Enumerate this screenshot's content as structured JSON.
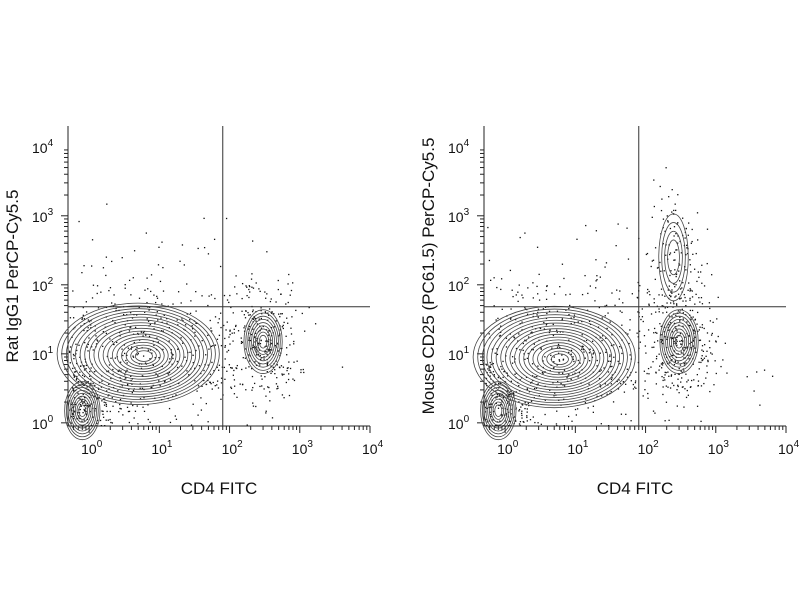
{
  "chart_data": [
    {
      "type": "scatter",
      "subtype": "flow-cytometry-contour",
      "xlabel": "CD4 FITC",
      "ylabel": "Rat IgG1 PerCP-Cy5.5",
      "x_scale": "log",
      "y_scale": "log",
      "xlim": [
        0.5,
        10000
      ],
      "ylim": [
        0.9,
        20000
      ],
      "x_ticks": [
        {
          "base": "10",
          "exp": "0",
          "value": 1
        },
        {
          "base": "10",
          "exp": "1",
          "value": 10
        },
        {
          "base": "10",
          "exp": "2",
          "value": 100
        },
        {
          "base": "10",
          "exp": "3",
          "value": 1000
        },
        {
          "base": "10",
          "exp": "4",
          "value": 10000
        }
      ],
      "y_ticks": [
        {
          "base": "10",
          "exp": "0",
          "value": 1
        },
        {
          "base": "10",
          "exp": "1",
          "value": 10
        },
        {
          "base": "10",
          "exp": "2",
          "value": 100
        },
        {
          "base": "10",
          "exp": "3",
          "value": 1000
        },
        {
          "base": "10",
          "exp": "4",
          "value": 10000
        }
      ],
      "gate": {
        "x": 80,
        "y": 48
      },
      "populations": [
        {
          "center": [
            5,
            10
          ],
          "spread": [
            0.55,
            0.35
          ],
          "density": "high"
        },
        {
          "center": [
            0.8,
            1.5
          ],
          "spread": [
            0.12,
            0.2
          ],
          "density": "medium"
        },
        {
          "center": [
            300,
            15
          ],
          "spread": [
            0.13,
            0.22
          ],
          "density": "medium"
        }
      ]
    },
    {
      "type": "scatter",
      "subtype": "flow-cytometry-contour",
      "xlabel": "CD4 FITC",
      "ylabel": "Mouse CD25 (PC61.5) PerCP-Cy5.5",
      "x_scale": "log",
      "y_scale": "log",
      "xlim": [
        0.5,
        10000
      ],
      "ylim": [
        0.9,
        20000
      ],
      "x_ticks": [
        {
          "base": "10",
          "exp": "0",
          "value": 1
        },
        {
          "base": "10",
          "exp": "1",
          "value": 10
        },
        {
          "base": "10",
          "exp": "2",
          "value": 100
        },
        {
          "base": "10",
          "exp": "3",
          "value": 1000
        },
        {
          "base": "10",
          "exp": "4",
          "value": 10000
        }
      ],
      "y_ticks": [
        {
          "base": "10",
          "exp": "0",
          "value": 1
        },
        {
          "base": "10",
          "exp": "1",
          "value": 10
        },
        {
          "base": "10",
          "exp": "2",
          "value": 100
        },
        {
          "base": "10",
          "exp": "3",
          "value": 1000
        },
        {
          "base": "10",
          "exp": "4",
          "value": 10000
        }
      ],
      "gate": {
        "x": 80,
        "y": 48
      },
      "populations": [
        {
          "center": [
            5,
            9
          ],
          "spread": [
            0.55,
            0.35
          ],
          "density": "high"
        },
        {
          "center": [
            0.8,
            1.5
          ],
          "spread": [
            0.12,
            0.2
          ],
          "density": "medium"
        },
        {
          "center": [
            300,
            15
          ],
          "spread": [
            0.13,
            0.22
          ],
          "density": "medium"
        },
        {
          "center": [
            250,
            250
          ],
          "spread": [
            0.1,
            0.3
          ],
          "density": "low"
        }
      ]
    }
  ]
}
